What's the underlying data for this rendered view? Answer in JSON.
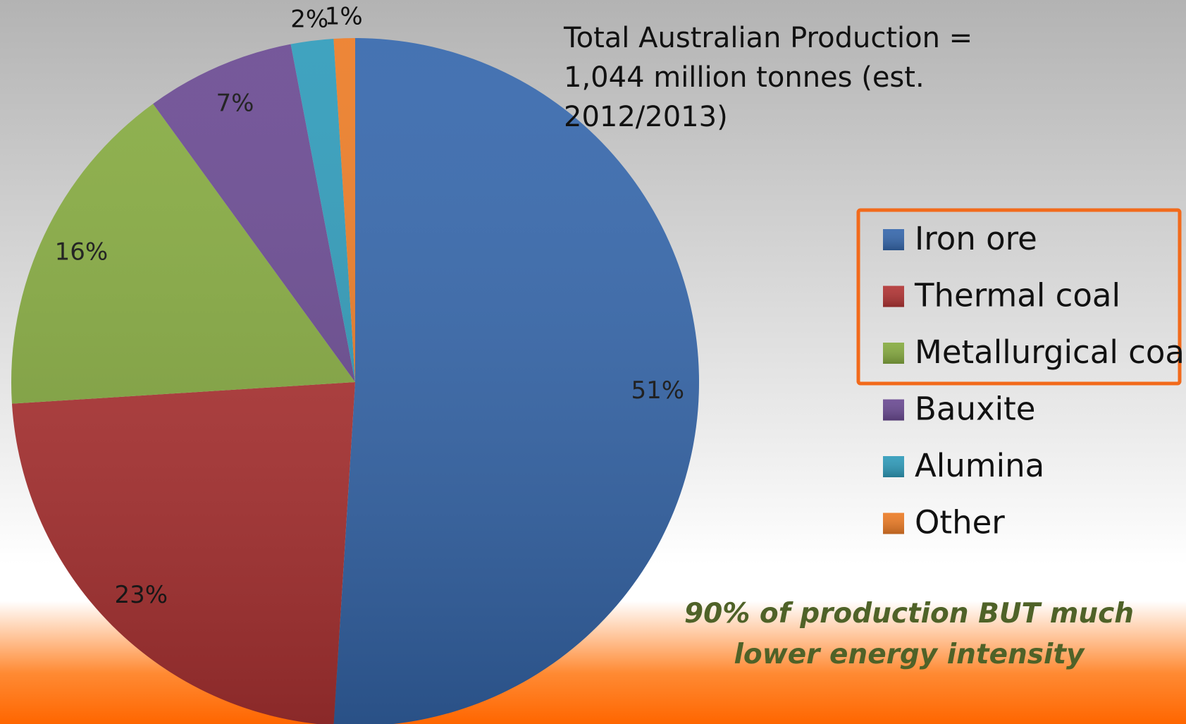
{
  "chart_data": {
    "type": "pie",
    "title": "Total Australian Production = 1,044 million tonnes  (est. 2012/2013)",
    "annotation": "90% of production BUT much lower energy intensity",
    "categories": [
      "Iron ore",
      "Thermal coal",
      "Metallurgical coal",
      "Bauxite",
      "Alumina",
      "Other"
    ],
    "values": [
      51,
      23,
      16,
      7,
      2,
      1
    ],
    "value_labels": [
      "51%",
      "23%",
      "16%",
      "7%",
      "2%",
      "1%"
    ],
    "colors": [
      "#3567ac",
      "#b13434",
      "#86ab40",
      "#6a4a92",
      "#2f9bba",
      "#ec7c26"
    ],
    "legend": "right",
    "highlighted": [
      "Iron ore",
      "Thermal coal",
      "Metallurgical coal"
    ]
  }
}
